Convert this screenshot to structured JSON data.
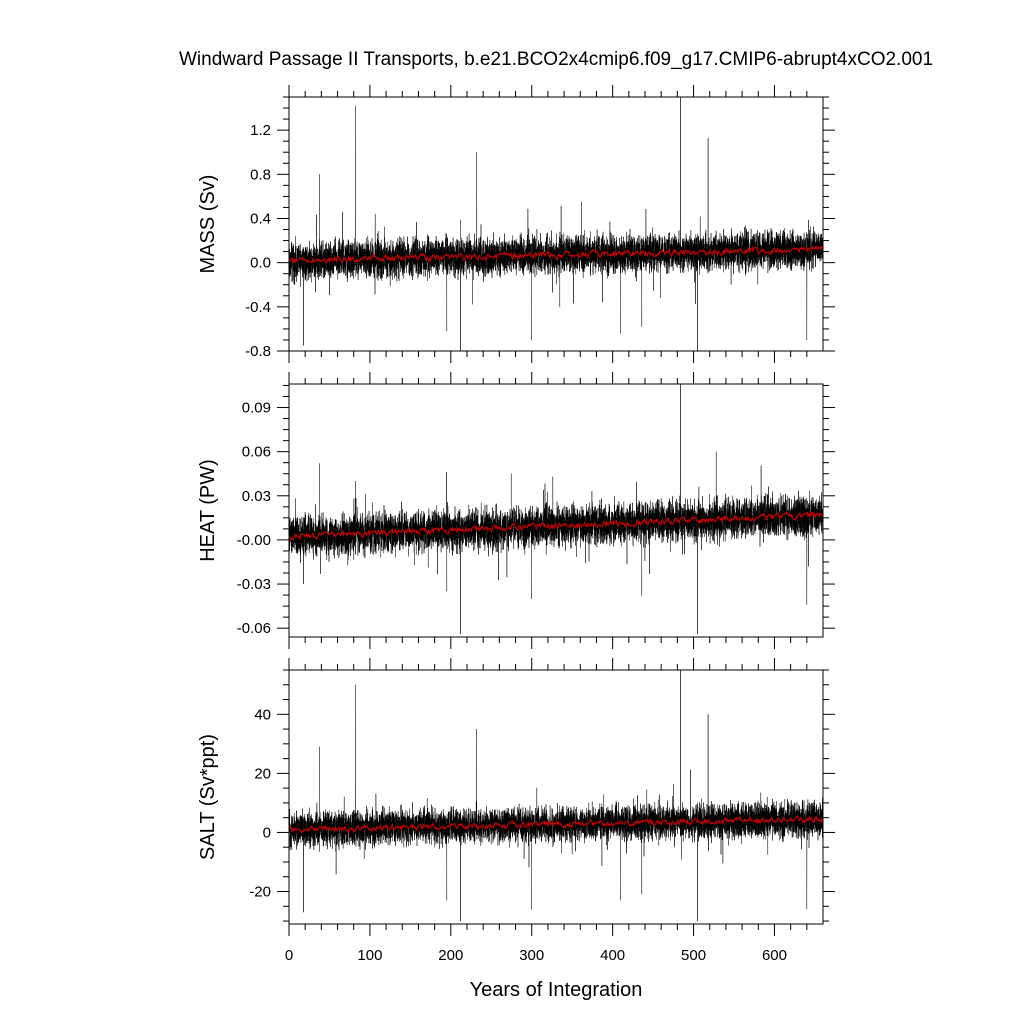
{
  "figure": {
    "title": "Windward Passage II Transports, b.e21.BCO2x4cmip6.f09_g17.CMIP6-abrupt4xCO2.001",
    "xlabel": "Years of Integration"
  },
  "chart_data": [
    {
      "type": "line",
      "title": "",
      "xlabel": "",
      "ylabel": "MASS (Sv)",
      "xlim": [
        0,
        660
      ],
      "ylim": [
        -0.8,
        1.5
      ],
      "xticks": [
        0,
        100,
        200,
        300,
        400,
        500,
        600
      ],
      "yticks": [
        -0.8,
        -0.4,
        0.0,
        0.4,
        0.8,
        1.2
      ],
      "ytick_labels": [
        "-0.8",
        "-0.4",
        "0.0",
        "0.4",
        "0.8",
        "1.2"
      ],
      "grid": false,
      "series": [
        {
          "role": "monthly",
          "color": "#000000",
          "trend": [
            [
              0,
              0.02
            ],
            [
              660,
              0.12
            ]
          ],
          "spread": 0.1,
          "spikes": [
            [
              18,
              -0.75
            ],
            [
              38,
              0.8
            ],
            [
              82,
              1.42
            ],
            [
              195,
              -0.62
            ],
            [
              212,
              -0.82
            ],
            [
              232,
              1.0
            ],
            [
              300,
              -0.7
            ],
            [
              410,
              -0.64
            ],
            [
              436,
              -0.58
            ],
            [
              484,
              1.5
            ],
            [
              505,
              -0.82
            ],
            [
              518,
              1.13
            ],
            [
              640,
              -0.7
            ]
          ]
        },
        {
          "role": "annual-mean",
          "color": "#cc0000",
          "trend": [
            [
              0,
              0.02
            ],
            [
              660,
              0.12
            ]
          ],
          "spread": 0.02
        }
      ]
    },
    {
      "type": "line",
      "title": "",
      "xlabel": "",
      "ylabel": "HEAT (PW)",
      "xlim": [
        0,
        660
      ],
      "ylim": [
        -0.066,
        0.106
      ],
      "xticks": [
        0,
        100,
        200,
        300,
        400,
        500,
        600
      ],
      "yticks": [
        -0.06,
        -0.03,
        0.0,
        0.03,
        0.06,
        0.09
      ],
      "ytick_labels": [
        "-0.06",
        "-0.03",
        "-0.00",
        "0.03",
        "0.06",
        "0.09"
      ],
      "grid": false,
      "series": [
        {
          "role": "monthly",
          "color": "#000000",
          "trend": [
            [
              0,
              0.002
            ],
            [
              660,
              0.017
            ]
          ],
          "spread": 0.008,
          "spikes": [
            [
              18,
              -0.03
            ],
            [
              38,
              0.052
            ],
            [
              82,
              0.04
            ],
            [
              195,
              -0.035
            ],
            [
              212,
              -0.064
            ],
            [
              300,
              -0.04
            ],
            [
              436,
              -0.038
            ],
            [
              484,
              0.106
            ],
            [
              505,
              -0.064
            ],
            [
              528,
              0.06
            ],
            [
              640,
              -0.044
            ]
          ]
        },
        {
          "role": "annual-mean",
          "color": "#cc0000",
          "trend": [
            [
              0,
              0.002
            ],
            [
              660,
              0.017
            ]
          ],
          "spread": 0.0015
        }
      ]
    },
    {
      "type": "line",
      "title": "",
      "xlabel": "Years of Integration",
      "ylabel": "SALT (Sv*ppt)",
      "xlim": [
        0,
        660
      ],
      "ylim": [
        -31,
        55
      ],
      "xticks": [
        0,
        100,
        200,
        300,
        400,
        500,
        600
      ],
      "yticks": [
        -20,
        0,
        20,
        40
      ],
      "ytick_labels": [
        "-20",
        "0",
        "20",
        "40"
      ],
      "grid": false,
      "series": [
        {
          "role": "monthly",
          "color": "#000000",
          "trend": [
            [
              0,
              1
            ],
            [
              660,
              4.5
            ]
          ],
          "spread": 3.5,
          "spikes": [
            [
              18,
              -27
            ],
            [
              38,
              29
            ],
            [
              82,
              50
            ],
            [
              195,
              -23
            ],
            [
              212,
              -30
            ],
            [
              232,
              35
            ],
            [
              300,
              -26
            ],
            [
              410,
              -23
            ],
            [
              436,
              -21
            ],
            [
              484,
              55
            ],
            [
              505,
              -30
            ],
            [
              518,
              40
            ],
            [
              640,
              -26
            ]
          ]
        },
        {
          "role": "annual-mean",
          "color": "#cc0000",
          "trend": [
            [
              0,
              1
            ],
            [
              660,
              4.5
            ]
          ],
          "spread": 0.7
        }
      ]
    }
  ]
}
